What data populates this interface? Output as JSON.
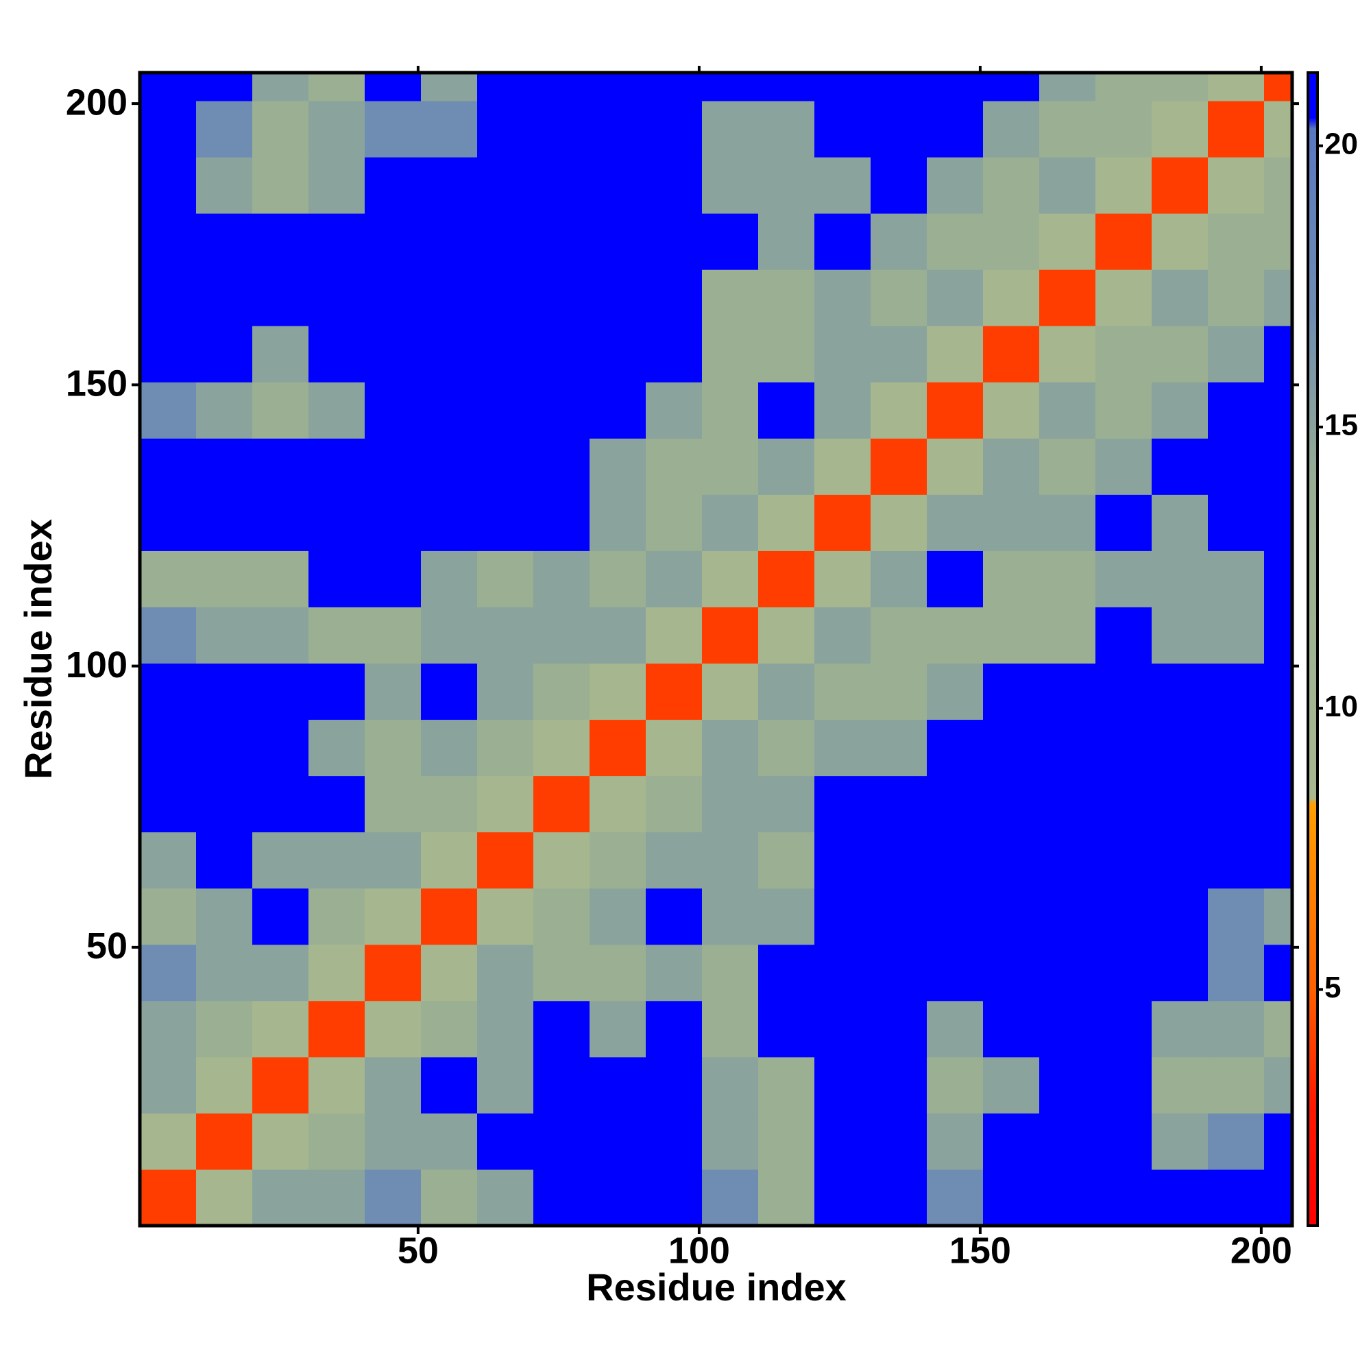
{
  "chart_data": {
    "type": "heatmap",
    "xlabel": "Residue index",
    "ylabel": "Residue index",
    "xbins": [
      0.5,
      10.5,
      20.5,
      30.5,
      40.5,
      50.5,
      60.5,
      70.5,
      80.5,
      90.5,
      100.5,
      110.5,
      120.5,
      130.5,
      140.5,
      150.5,
      160.5,
      170.5,
      180.5,
      190.5,
      200.5,
      205.5
    ],
    "ybins": [
      0.5,
      10.5,
      20.5,
      30.5,
      40.5,
      50.5,
      60.5,
      70.5,
      80.5,
      90.5,
      100.5,
      110.5,
      120.5,
      130.5,
      140.5,
      150.5,
      160.5,
      170.5,
      180.5,
      190.5,
      200.5,
      205.5
    ],
    "z": [
      [
        4,
        9,
        15,
        15,
        17,
        13,
        15,
        26,
        26,
        26,
        17,
        13,
        26,
        26,
        17,
        26,
        26,
        26,
        26,
        26,
        26
      ],
      [
        9,
        4,
        9,
        13,
        15,
        15,
        26,
        26,
        26,
        26,
        15,
        13,
        26,
        26,
        15,
        26,
        26,
        26,
        15,
        17,
        26
      ],
      [
        15,
        9,
        4,
        9,
        15,
        26,
        15,
        26,
        26,
        26,
        15,
        13,
        26,
        26,
        13,
        15,
        26,
        26,
        13,
        13,
        15
      ],
      [
        15,
        13,
        9,
        4,
        9,
        13,
        15,
        26,
        15,
        26,
        13,
        26,
        26,
        26,
        15,
        26,
        26,
        26,
        15,
        15,
        13
      ],
      [
        17,
        15,
        15,
        9,
        4,
        9,
        15,
        13,
        13,
        15,
        13,
        26,
        26,
        26,
        26,
        26,
        26,
        26,
        26,
        17,
        26
      ],
      [
        13,
        15,
        26,
        13,
        9,
        4,
        9,
        13,
        15,
        26,
        15,
        15,
        26,
        26,
        26,
        26,
        26,
        26,
        26,
        17,
        15
      ],
      [
        15,
        26,
        15,
        15,
        15,
        9,
        4,
        9,
        13,
        15,
        15,
        13,
        26,
        26,
        26,
        26,
        26,
        26,
        26,
        26,
        26
      ],
      [
        26,
        26,
        26,
        26,
        13,
        13,
        9,
        4,
        9,
        13,
        15,
        15,
        26,
        26,
        26,
        26,
        26,
        26,
        26,
        26,
        26
      ],
      [
        26,
        26,
        26,
        15,
        13,
        15,
        13,
        9,
        4,
        9,
        15,
        13,
        15,
        15,
        26,
        26,
        26,
        26,
        26,
        26,
        26
      ],
      [
        26,
        26,
        26,
        26,
        15,
        26,
        15,
        13,
        9,
        4,
        9,
        15,
        13,
        13,
        15,
        26,
        26,
        26,
        26,
        26,
        26
      ],
      [
        17,
        15,
        15,
        13,
        13,
        15,
        15,
        15,
        15,
        9,
        4,
        9,
        15,
        13,
        13,
        13,
        13,
        26,
        15,
        15,
        26
      ],
      [
        13,
        13,
        13,
        26,
        26,
        15,
        13,
        15,
        13,
        15,
        9,
        4,
        9,
        15,
        26,
        13,
        13,
        15,
        15,
        15,
        26
      ],
      [
        26,
        26,
        26,
        26,
        26,
        26,
        26,
        26,
        15,
        13,
        15,
        9,
        4,
        9,
        15,
        15,
        15,
        26,
        15,
        26,
        26
      ],
      [
        26,
        26,
        26,
        26,
        26,
        26,
        26,
        26,
        15,
        13,
        13,
        15,
        9,
        4,
        9,
        15,
        13,
        15,
        26,
        26,
        26
      ],
      [
        17,
        15,
        13,
        15,
        26,
        26,
        26,
        26,
        26,
        15,
        13,
        26,
        15,
        9,
        4,
        9,
        15,
        13,
        15,
        26,
        26
      ],
      [
        26,
        26,
        15,
        26,
        26,
        26,
        26,
        26,
        26,
        26,
        13,
        13,
        15,
        15,
        9,
        4,
        9,
        13,
        13,
        15,
        26
      ],
      [
        26,
        26,
        26,
        26,
        26,
        26,
        26,
        26,
        26,
        26,
        13,
        13,
        15,
        13,
        15,
        9,
        4,
        9,
        15,
        13,
        15
      ],
      [
        26,
        26,
        26,
        26,
        26,
        26,
        26,
        26,
        26,
        26,
        26,
        15,
        26,
        15,
        13,
        13,
        9,
        4,
        9,
        13,
        13
      ],
      [
        26,
        15,
        13,
        15,
        26,
        26,
        26,
        26,
        26,
        26,
        15,
        15,
        15,
        26,
        15,
        13,
        15,
        9,
        4,
        9,
        13
      ],
      [
        26,
        17,
        13,
        15,
        17,
        17,
        26,
        26,
        26,
        26,
        15,
        15,
        26,
        26,
        26,
        15,
        13,
        13,
        9,
        4,
        9
      ],
      [
        26,
        26,
        15,
        13,
        26,
        15,
        26,
        26,
        26,
        26,
        26,
        26,
        26,
        26,
        26,
        26,
        15,
        13,
        13,
        9,
        4
      ]
    ],
    "xlim": [
      0.5,
      205.5
    ],
    "ylim": [
      0.5,
      205.5
    ],
    "xticks": [
      50,
      100,
      150,
      200
    ],
    "yticks": [
      50,
      100,
      150,
      200
    ],
    "colorscale": [
      [
        0.8,
        "#ff0000"
      ],
      [
        3,
        "#ff1a00"
      ],
      [
        5,
        "#ff6000"
      ],
      [
        8.3,
        "#ffa000"
      ],
      [
        8.4,
        "#a8b890"
      ],
      [
        14,
        "#98ae92"
      ],
      [
        17,
        "#6f8db2"
      ],
      [
        20.3,
        "#5a78c0"
      ],
      [
        20.5,
        "#0000ff"
      ]
    ],
    "colorbar_lim": [
      0.8,
      21.3
    ],
    "colorbar_ticks": [
      5,
      10,
      15,
      20
    ]
  }
}
